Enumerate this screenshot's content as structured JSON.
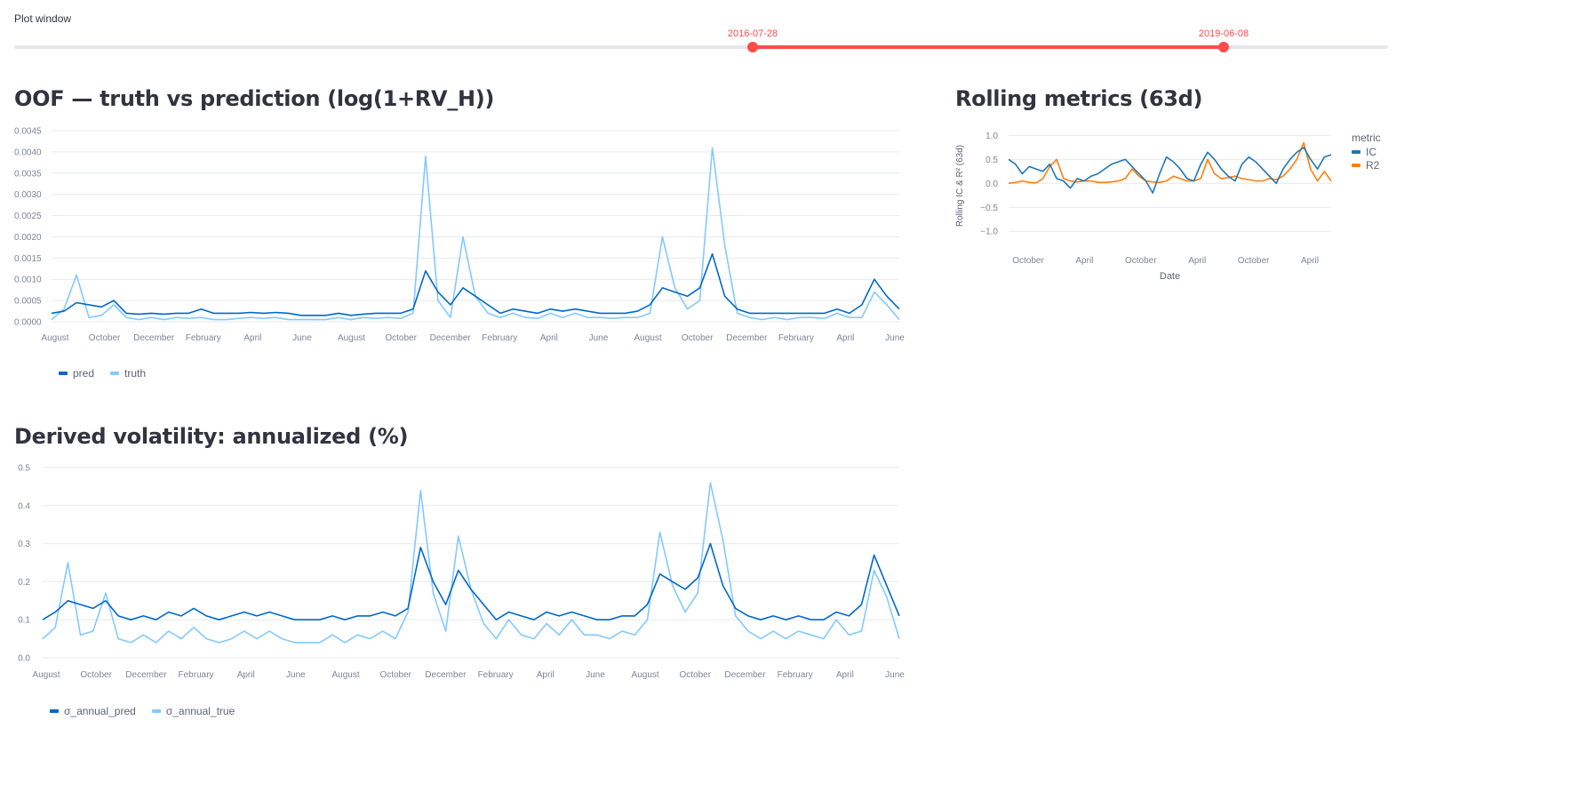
{
  "slider": {
    "label": "Plot window",
    "start": "2016-07-28",
    "end": "2019-06-08",
    "color": "#ff4b4b"
  },
  "oof_chart": {
    "title": "OOF — truth vs prediction (log(1+RV_H))",
    "legend": [
      {
        "name": "pred",
        "color": "#0068c9"
      },
      {
        "name": "truth",
        "color": "#83c9ff"
      }
    ]
  },
  "vol_chart": {
    "title": "Derived volatility: annualized (%)",
    "legend": [
      {
        "name": "σ_annual_pred",
        "color": "#0068c9"
      },
      {
        "name": "σ_annual_true",
        "color": "#83c9ff"
      }
    ]
  },
  "rolling_chart": {
    "title": "Rolling metrics (63d)",
    "legend_title": "metric",
    "legend": [
      {
        "name": "IC",
        "color": "#1f77b4"
      },
      {
        "name": "R2",
        "color": "#ff7f0e"
      }
    ]
  },
  "chart_data": [
    {
      "type": "line",
      "title": "OOF — truth vs prediction (log(1+RV_H))",
      "xlabel": "",
      "ylabel": "",
      "ylim": [
        0,
        0.0045
      ],
      "y_ticks": [
        "0.0045",
        "0.0040",
        "0.0035",
        "0.0030",
        "0.0025",
        "0.0020",
        "0.0015",
        "0.0010",
        "0.0005",
        "0.0000"
      ],
      "x_ticks": [
        "August",
        "October",
        "December",
        "February",
        "April",
        "June",
        "August",
        "October",
        "December",
        "February",
        "April",
        "June",
        "August",
        "October",
        "December",
        "February",
        "April",
        "June"
      ],
      "grid": true,
      "legend": "bottom-left",
      "series": [
        {
          "name": "pred",
          "color": "#0068c9",
          "values": [
            0.0002,
            0.00025,
            0.00045,
            0.0004,
            0.00035,
            0.0005,
            0.0002,
            0.00018,
            0.0002,
            0.00018,
            0.0002,
            0.0002,
            0.0003,
            0.0002,
            0.0002,
            0.0002,
            0.00022,
            0.0002,
            0.00022,
            0.0002,
            0.00015,
            0.00015,
            0.00015,
            0.0002,
            0.00015,
            0.00018,
            0.0002,
            0.0002,
            0.0002,
            0.0003,
            0.0012,
            0.0007,
            0.0004,
            0.0008,
            0.0006,
            0.0004,
            0.0002,
            0.0003,
            0.00025,
            0.0002,
            0.0003,
            0.00025,
            0.0003,
            0.00025,
            0.0002,
            0.0002,
            0.0002,
            0.00025,
            0.0004,
            0.0008,
            0.0007,
            0.0006,
            0.0008,
            0.0016,
            0.0006,
            0.0003,
            0.0002,
            0.0002,
            0.0002,
            0.0002,
            0.0002,
            0.0002,
            0.0002,
            0.0003,
            0.0002,
            0.0004,
            0.001,
            0.0006,
            0.0003
          ]
        },
        {
          "name": "truth",
          "color": "#83c9ff",
          "values": [
            5e-05,
            0.0003,
            0.0011,
            0.0001,
            0.00015,
            0.0004,
            0.0001,
            5e-05,
            0.0001,
            5e-05,
            0.0001,
            8e-05,
            0.0001,
            5e-05,
            5e-05,
            8e-05,
            0.0001,
            8e-05,
            0.0001,
            5e-05,
            5e-05,
            5e-05,
            5e-05,
            0.0001,
            5e-05,
            0.0001,
            8e-05,
            0.0001,
            8e-05,
            0.0002,
            0.0039,
            0.0005,
            0.0001,
            0.002,
            0.0006,
            0.0002,
            0.0001,
            0.0002,
            0.0001,
            8e-05,
            0.0002,
            0.0001,
            0.0002,
            0.0001,
            0.0001,
            8e-05,
            0.0001,
            0.0001,
            0.0002,
            0.002,
            0.0008,
            0.0003,
            0.0005,
            0.0041,
            0.0018,
            0.0002,
            0.0001,
            5e-05,
            0.0001,
            5e-05,
            0.0001,
            0.0001,
            8e-05,
            0.0002,
            0.0001,
            0.0001,
            0.0007,
            0.0004,
            5e-05
          ]
        }
      ]
    },
    {
      "type": "line",
      "title": "Derived volatility: annualized (%)",
      "xlabel": "",
      "ylabel": "",
      "ylim": [
        0,
        0.5
      ],
      "y_ticks": [
        "0.5",
        "0.4",
        "0.3",
        "0.2",
        "0.1",
        "0.0"
      ],
      "x_ticks": [
        "August",
        "October",
        "December",
        "February",
        "April",
        "June",
        "August",
        "October",
        "December",
        "February",
        "April",
        "June",
        "August",
        "October",
        "December",
        "February",
        "April",
        "June"
      ],
      "grid": true,
      "legend": "bottom-left",
      "series": [
        {
          "name": "σ_annual_pred",
          "color": "#0068c9",
          "values": [
            0.1,
            0.12,
            0.15,
            0.14,
            0.13,
            0.15,
            0.11,
            0.1,
            0.11,
            0.1,
            0.12,
            0.11,
            0.13,
            0.11,
            0.1,
            0.11,
            0.12,
            0.11,
            0.12,
            0.11,
            0.1,
            0.1,
            0.1,
            0.11,
            0.1,
            0.11,
            0.11,
            0.12,
            0.11,
            0.13,
            0.29,
            0.2,
            0.14,
            0.23,
            0.18,
            0.14,
            0.1,
            0.12,
            0.11,
            0.1,
            0.12,
            0.11,
            0.12,
            0.11,
            0.1,
            0.1,
            0.11,
            0.11,
            0.14,
            0.22,
            0.2,
            0.18,
            0.21,
            0.3,
            0.19,
            0.13,
            0.11,
            0.1,
            0.11,
            0.1,
            0.11,
            0.1,
            0.1,
            0.12,
            0.11,
            0.14,
            0.27,
            0.19,
            0.11
          ]
        },
        {
          "name": "σ_annual_true",
          "color": "#83c9ff",
          "values": [
            0.05,
            0.08,
            0.25,
            0.06,
            0.07,
            0.17,
            0.05,
            0.04,
            0.06,
            0.04,
            0.07,
            0.05,
            0.08,
            0.05,
            0.04,
            0.05,
            0.07,
            0.05,
            0.07,
            0.05,
            0.04,
            0.04,
            0.04,
            0.06,
            0.04,
            0.06,
            0.05,
            0.07,
            0.05,
            0.12,
            0.44,
            0.17,
            0.07,
            0.32,
            0.18,
            0.09,
            0.05,
            0.1,
            0.06,
            0.05,
            0.09,
            0.06,
            0.1,
            0.06,
            0.06,
            0.05,
            0.07,
            0.06,
            0.1,
            0.33,
            0.19,
            0.12,
            0.17,
            0.46,
            0.31,
            0.11,
            0.07,
            0.05,
            0.07,
            0.05,
            0.07,
            0.06,
            0.05,
            0.1,
            0.06,
            0.07,
            0.23,
            0.16,
            0.05
          ]
        }
      ]
    },
    {
      "type": "line",
      "title": "Rolling metrics (63d)",
      "xlabel": "Date",
      "ylabel": "Rolling IC & R² (63d)",
      "ylim": [
        -1.2,
        1.1
      ],
      "y_ticks": [
        "1.0",
        "0.5",
        "0.0",
        "−0.5",
        "−1.0"
      ],
      "x_ticks": [
        "October",
        "April",
        "October",
        "April",
        "October",
        "April"
      ],
      "grid": true,
      "legend": "right",
      "series": [
        {
          "name": "IC",
          "color": "#1f77b4",
          "values": [
            0.5,
            0.4,
            0.2,
            0.35,
            0.3,
            0.25,
            0.4,
            0.1,
            0.05,
            -0.1,
            0.1,
            0.05,
            0.15,
            0.2,
            0.3,
            0.4,
            0.45,
            0.5,
            0.35,
            0.2,
            0.05,
            -0.2,
            0.2,
            0.55,
            0.45,
            0.3,
            0.1,
            0.05,
            0.4,
            0.65,
            0.5,
            0.3,
            0.15,
            0.05,
            0.4,
            0.55,
            0.45,
            0.3,
            0.15,
            0.0,
            0.3,
            0.5,
            0.65,
            0.75,
            0.5,
            0.3,
            0.55,
            0.6
          ]
        },
        {
          "name": "R2",
          "color": "#ff7f0e",
          "values": [
            0.0,
            0.02,
            0.05,
            0.02,
            0.01,
            0.1,
            0.35,
            0.5,
            0.1,
            0.05,
            0.03,
            0.05,
            0.05,
            0.02,
            0.02,
            0.03,
            0.05,
            0.1,
            0.3,
            0.15,
            0.05,
            0.03,
            0.02,
            0.05,
            0.15,
            0.1,
            0.05,
            0.05,
            0.1,
            0.5,
            0.2,
            0.1,
            0.12,
            0.15,
            0.1,
            0.08,
            0.05,
            0.05,
            0.1,
            0.08,
            0.15,
            0.3,
            0.5,
            0.85,
            0.3,
            0.05,
            0.25,
            0.05
          ]
        }
      ]
    }
  ]
}
